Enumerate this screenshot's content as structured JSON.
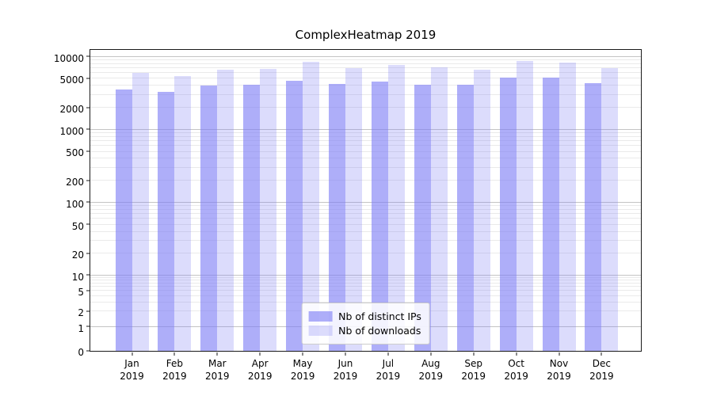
{
  "title": "ComplexHeatmap 2019",
  "chart_data": {
    "type": "bar",
    "title": "ComplexHeatmap 2019",
    "categories": [
      "Jan",
      "Feb",
      "Mar",
      "Apr",
      "May",
      "Jun",
      "Jul",
      "Aug",
      "Sep",
      "Oct",
      "Nov",
      "Dec"
    ],
    "xtick_year": "2019",
    "series": [
      {
        "name": "Nb of distinct IPs",
        "color": "rgba(124,124,245,0.62)",
        "values": [
          3580,
          3330,
          4020,
          4100,
          4730,
          4230,
          4550,
          4190,
          4160,
          5150,
          5220,
          4340
        ]
      },
      {
        "name": "Nb of downloads",
        "color": "rgba(124,124,245,0.27)",
        "values": [
          6060,
          5450,
          6690,
          6800,
          8550,
          7030,
          7830,
          7100,
          6590,
          8860,
          8360,
          7030
        ]
      }
    ],
    "yscale": "symlog",
    "yticks": [
      0,
      1,
      2,
      5,
      10,
      20,
      50,
      100,
      200,
      500,
      1000,
      2000,
      5000,
      10000
    ],
    "ylim": [
      0,
      10800
    ],
    "grid": true,
    "legend_position": "lower center",
    "colors": {
      "major_grid": "#c4c4c4",
      "minor_grid": "#eaeaea",
      "spine": "#1a1a1a"
    }
  }
}
